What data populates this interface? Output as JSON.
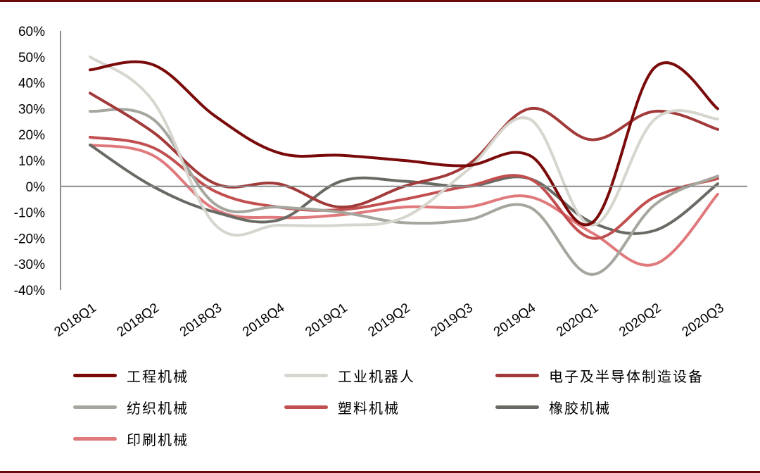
{
  "chart_data": {
    "type": "line",
    "categories": [
      "2018Q1",
      "2018Q2",
      "2018Q3",
      "2018Q4",
      "2019Q1",
      "2019Q2",
      "2019Q3",
      "2019Q4",
      "2020Q1",
      "2020Q2",
      "2020Q3"
    ],
    "ylim": [
      -40,
      60
    ],
    "yticks": [
      60,
      50,
      40,
      30,
      20,
      10,
      0,
      -10,
      -20,
      -30,
      -40
    ],
    "ytick_labels": [
      "60%",
      "50%",
      "40%",
      "30%",
      "20%",
      "10%",
      "0%",
      "-10%",
      "-20%",
      "-30%",
      "-40%"
    ],
    "legend_position": "bottom",
    "series": [
      {
        "name": "工程机械",
        "color": "#7a0a0a",
        "values": [
          45,
          47,
          27,
          13,
          12,
          10,
          8,
          12,
          -14,
          46,
          30
        ]
      },
      {
        "name": "工业机器人",
        "color": "#d6d5ce",
        "values": [
          50,
          33,
          -15,
          -15,
          -15,
          -12,
          6,
          26,
          -15,
          26,
          26
        ]
      },
      {
        "name": "电子及半导体制造设备",
        "color": "#a23a3a",
        "values": [
          36,
          21,
          1,
          1,
          -8,
          0,
          8,
          30,
          18,
          29,
          22
        ]
      },
      {
        "name": "纺织机械",
        "color": "#a5a69e",
        "values": [
          29,
          26,
          -7,
          -8,
          -10,
          -14,
          -13,
          -8,
          -34,
          -7,
          4
        ]
      },
      {
        "name": "塑料机械",
        "color": "#c24f50",
        "values": [
          19,
          15,
          -2,
          -8,
          -9,
          -5,
          0,
          3,
          -20,
          -4,
          3
        ]
      },
      {
        "name": "橡胶机械",
        "color": "#6a6a64",
        "values": [
          16,
          0,
          -10,
          -13,
          2,
          2,
          0,
          3,
          -14,
          -17,
          1
        ]
      },
      {
        "name": "印刷机械",
        "color": "#e0797c",
        "values": [
          16,
          12,
          -9,
          -12,
          -11,
          -8,
          -8,
          -4,
          -18,
          -30,
          -3
        ]
      }
    ]
  }
}
